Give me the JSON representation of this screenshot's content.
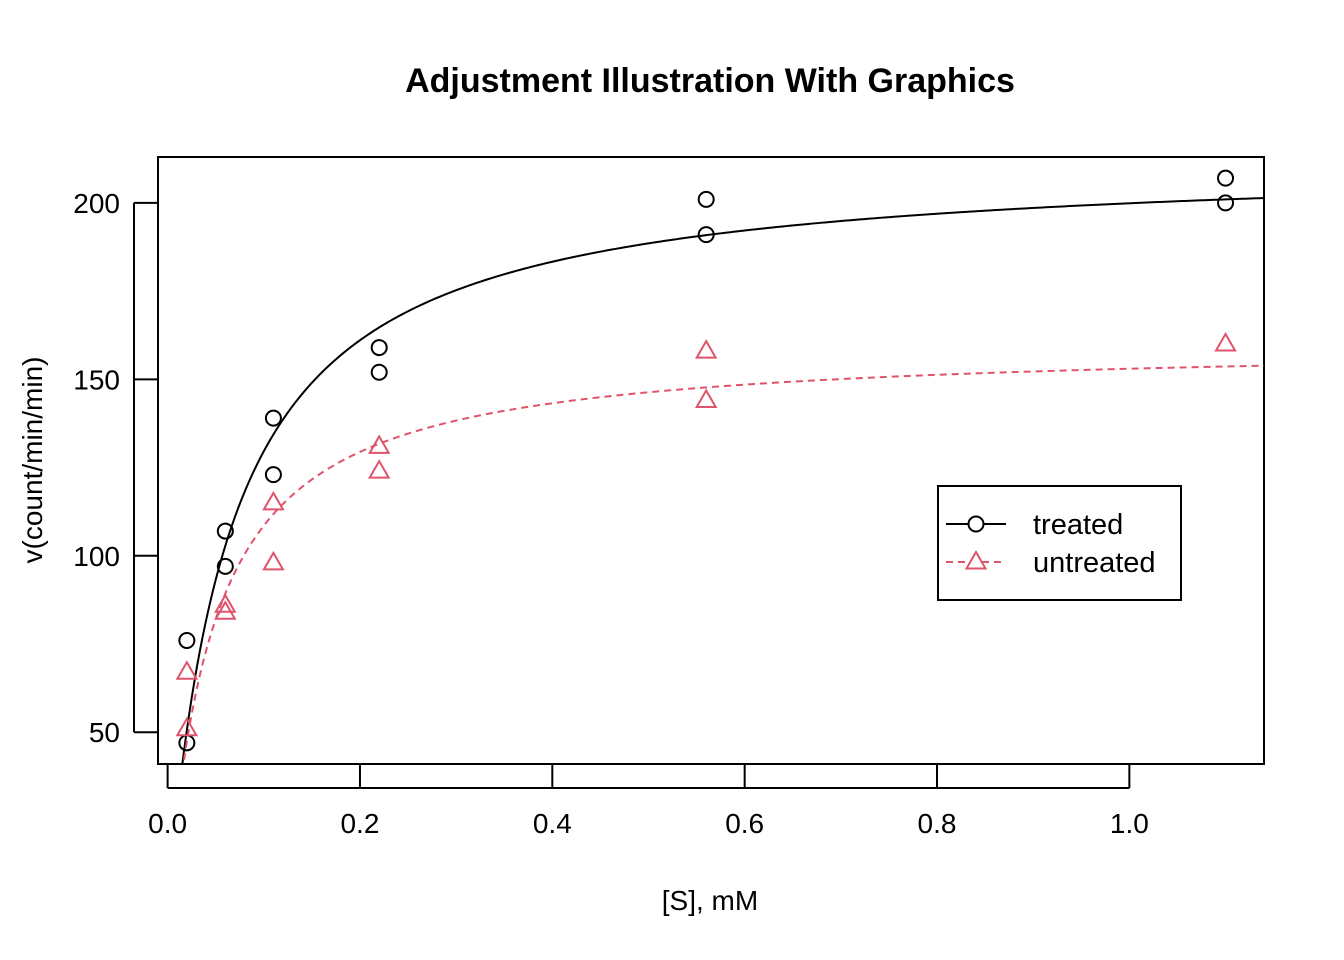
{
  "chart_data": {
    "type": "scatter",
    "title": "Adjustment Illustration With Graphics",
    "xlabel": "[S], mM",
    "ylabel": "v(count/min/min)",
    "xlim": [
      -0.01,
      1.14
    ],
    "ylim": [
      41,
      213
    ],
    "x_ticks": [
      0.0,
      0.2,
      0.4,
      0.6,
      0.8,
      1.0
    ],
    "x_tick_labels": [
      "0.0",
      "0.2",
      "0.4",
      "0.6",
      "0.8",
      "1.0"
    ],
    "y_ticks": [
      50,
      100,
      150,
      200
    ],
    "y_tick_labels": [
      "50",
      "100",
      "150",
      "200"
    ],
    "grid": false,
    "legend_position": "right",
    "series": [
      {
        "name": "treated",
        "color": "#000000",
        "marker": "circle",
        "line_style": "solid",
        "points": [
          {
            "x": 0.02,
            "y": 76
          },
          {
            "x": 0.02,
            "y": 47
          },
          {
            "x": 0.06,
            "y": 97
          },
          {
            "x": 0.06,
            "y": 107
          },
          {
            "x": 0.11,
            "y": 123
          },
          {
            "x": 0.11,
            "y": 139
          },
          {
            "x": 0.22,
            "y": 159
          },
          {
            "x": 0.22,
            "y": 152
          },
          {
            "x": 0.56,
            "y": 191
          },
          {
            "x": 0.56,
            "y": 201
          },
          {
            "x": 1.1,
            "y": 207
          },
          {
            "x": 1.1,
            "y": 200
          }
        ],
        "fit": {
          "model": "Michaelis-Menten",
          "Vm": 212.7,
          "K": 0.0641
        }
      },
      {
        "name": "untreated",
        "color": "#df536b",
        "marker": "triangle",
        "line_style": "dashed",
        "points": [
          {
            "x": 0.02,
            "y": 67
          },
          {
            "x": 0.02,
            "y": 51
          },
          {
            "x": 0.06,
            "y": 84
          },
          {
            "x": 0.06,
            "y": 86
          },
          {
            "x": 0.11,
            "y": 98
          },
          {
            "x": 0.11,
            "y": 115
          },
          {
            "x": 0.22,
            "y": 131
          },
          {
            "x": 0.22,
            "y": 124
          },
          {
            "x": 0.56,
            "y": 144
          },
          {
            "x": 0.56,
            "y": 158
          },
          {
            "x": 1.1,
            "y": 160
          }
        ],
        "fit": {
          "model": "Michaelis-Menten",
          "Vm": 160.3,
          "K": 0.0477
        }
      }
    ]
  }
}
